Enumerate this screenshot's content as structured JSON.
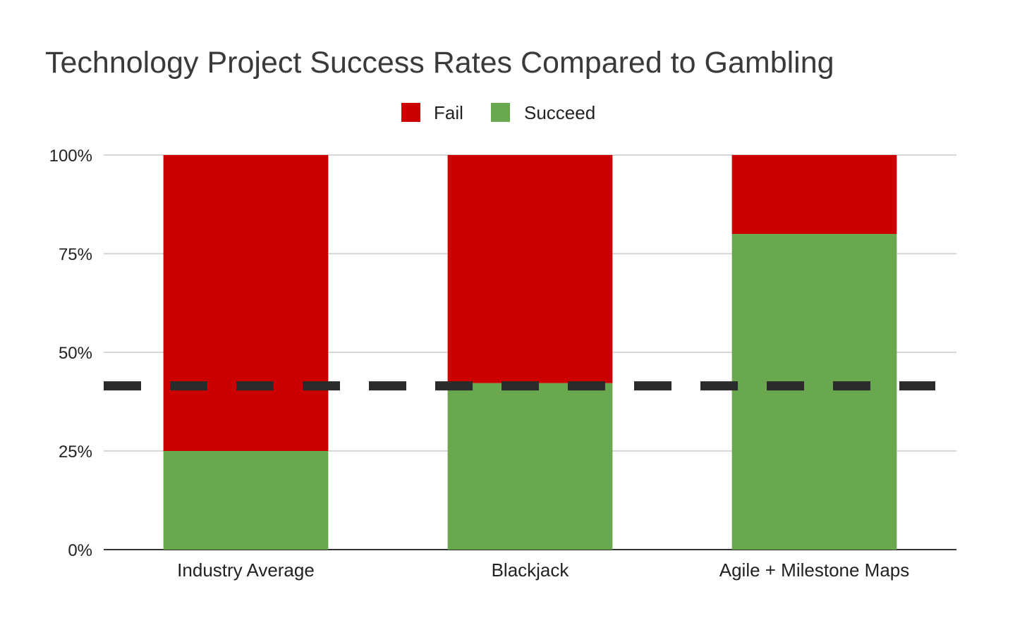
{
  "chart_data": {
    "type": "bar",
    "stacked": true,
    "title": "Technology Project Success Rates Compared to Gambling",
    "xlabel": "",
    "ylabel": "",
    "categories": [
      "Industry Average",
      "Blackjack",
      "Agile + Milestone Maps"
    ],
    "series": [
      {
        "name": "Succeed",
        "values": [
          25,
          42.2,
          80
        ],
        "color": "#6aa84f"
      },
      {
        "name": "Fail",
        "values": [
          75,
          57.8,
          20
        ],
        "color": "#cc0000"
      }
    ],
    "legend": [
      {
        "name": "Fail",
        "color": "#cc0000"
      },
      {
        "name": "Succeed",
        "color": "#6aa84f"
      }
    ],
    "legend_position": "top-center",
    "ylim": [
      0,
      100
    ],
    "yticks": [
      0,
      25,
      50,
      75,
      100
    ],
    "ytick_labels": [
      "0%",
      "25%",
      "50%",
      "75%",
      "100%"
    ],
    "grid": true,
    "reference_line": {
      "value": 41.5,
      "style": "dashed",
      "color": "#2b2b2b"
    }
  }
}
